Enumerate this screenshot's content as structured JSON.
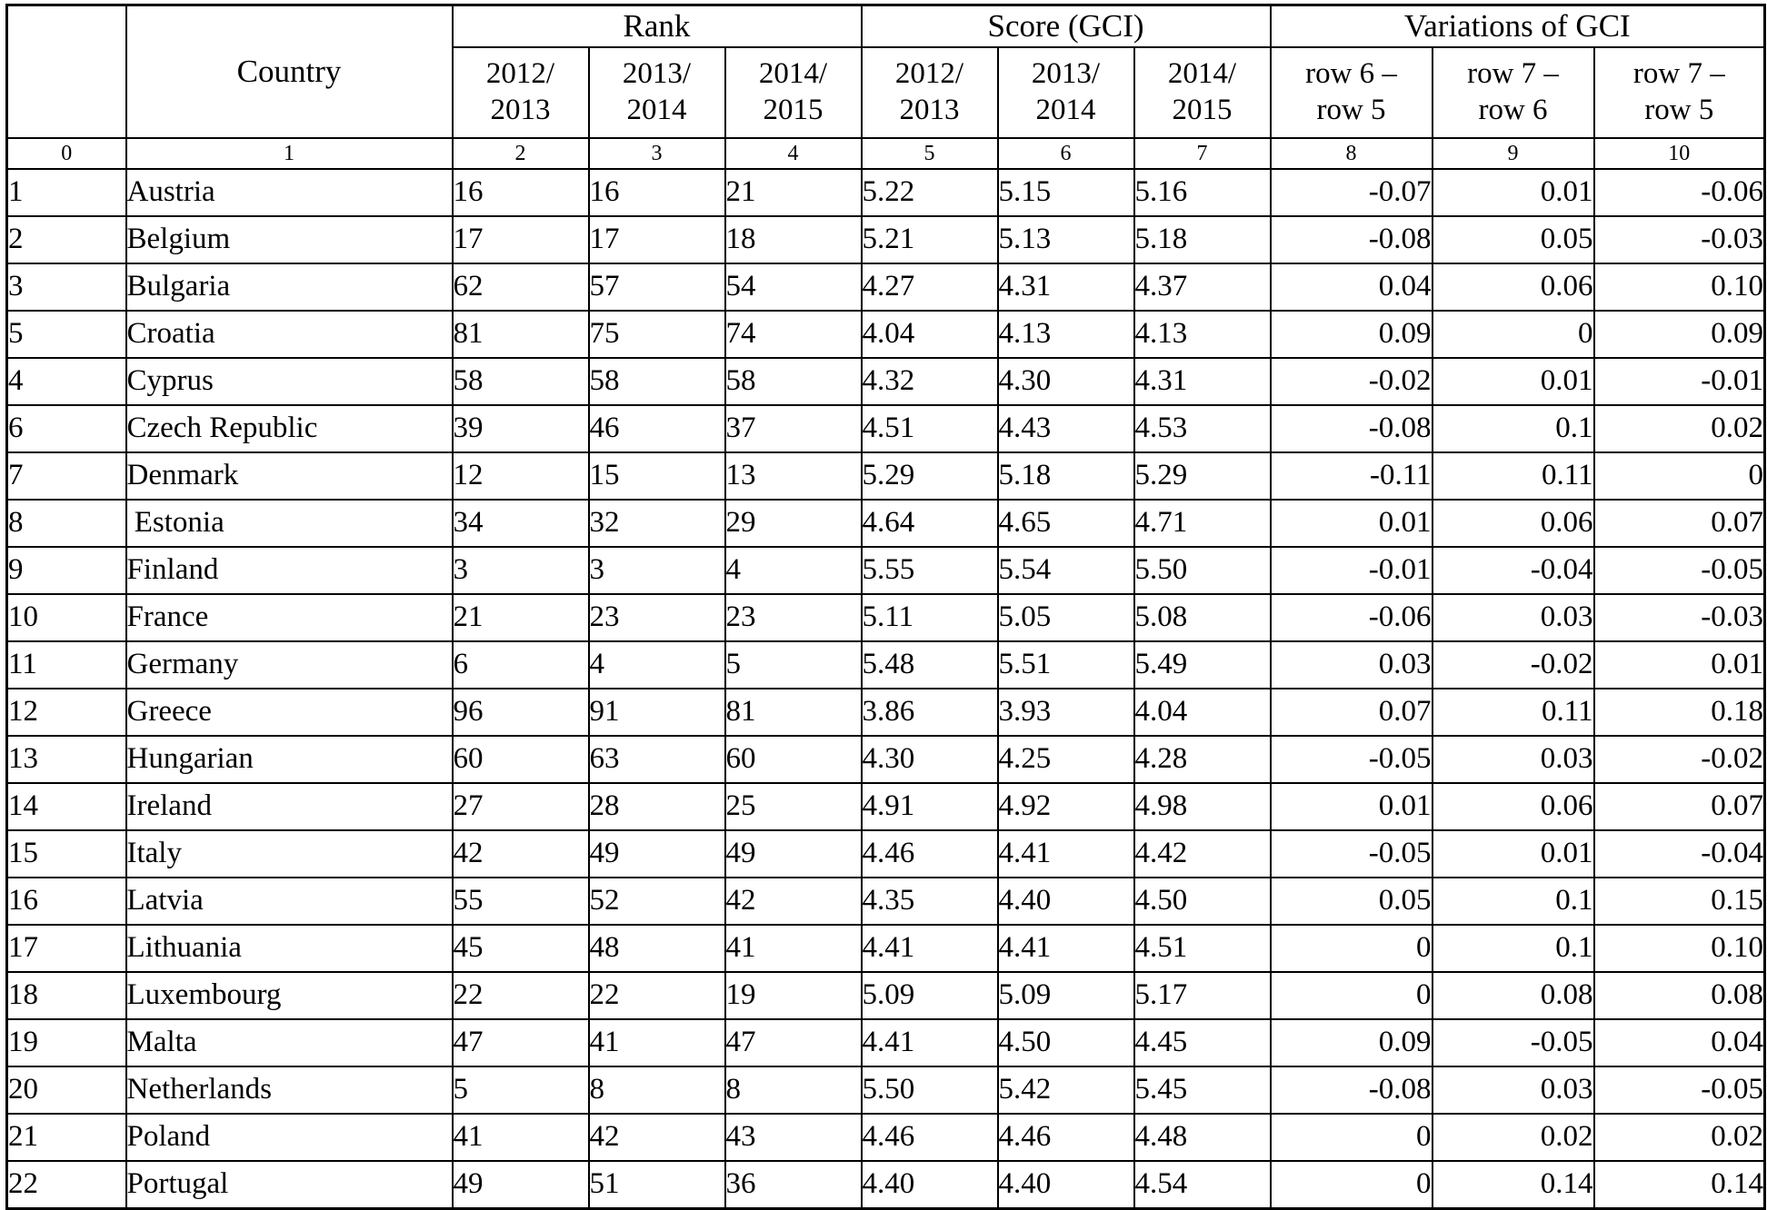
{
  "table": {
    "country_header": "Country",
    "group_headers": [
      "Rank",
      "Score (GCI)",
      "Variations of  GCI"
    ],
    "sub_headers": [
      "2012/\n2013",
      "2013/\n2014",
      "2014/\n2015",
      "2012/\n2013",
      "2013/\n2014",
      "2014/\n2015",
      "row 6 –\nrow 5",
      "row 7 –\nrow 6",
      "row 7 –\nrow 5"
    ],
    "col_indices": [
      "0",
      "1",
      "2",
      "3",
      "4",
      "5",
      "6",
      "7",
      "8",
      "9",
      "10"
    ],
    "rows": [
      [
        "1",
        "Austria",
        "16",
        "16",
        "21",
        "5.22",
        "5.15",
        "5.16",
        "-0.07",
        "0.01",
        "-0.06"
      ],
      [
        "2",
        "Belgium",
        "17",
        "17",
        "18",
        "5.21",
        "5.13",
        "5.18",
        "-0.08",
        "0.05",
        "-0.03"
      ],
      [
        "3",
        "Bulgaria",
        "62",
        "57",
        "54",
        "4.27",
        "4.31",
        "4.37",
        "0.04",
        "0.06",
        "0.10"
      ],
      [
        "5",
        "Croatia",
        "81",
        "75",
        "74",
        "4.04",
        "4.13",
        "4.13",
        "0.09",
        "0",
        "0.09"
      ],
      [
        "4",
        "Cyprus",
        "58",
        "58",
        "58",
        "4.32",
        "4.30",
        "4.31",
        "-0.02",
        "0.01",
        "-0.01"
      ],
      [
        "6",
        "Czech Republic",
        "39",
        "46",
        "37",
        "4.51",
        "4.43",
        "4.53",
        "-0.08",
        "0.1",
        "0.02"
      ],
      [
        "7",
        "Denmark",
        "12",
        "15",
        "13",
        "5.29",
        "5.18",
        "5.29",
        "-0.11",
        "0.11",
        "0"
      ],
      [
        "8",
        " Estonia",
        "34",
        "32",
        "29",
        "4.64",
        "4.65",
        "4.71",
        "0.01",
        "0.06",
        "0.07"
      ],
      [
        "9",
        "Finland",
        "3",
        "3",
        "4",
        "5.55",
        "5.54",
        "5.50",
        "-0.01",
        "-0.04",
        "-0.05"
      ],
      [
        "10",
        "France",
        "21",
        "23",
        "23",
        "5.11",
        "5.05",
        "5.08",
        "-0.06",
        "0.03",
        "-0.03"
      ],
      [
        "11",
        "Germany",
        "6",
        "4",
        "5",
        "5.48",
        "5.51",
        "5.49",
        "0.03",
        "-0.02",
        "0.01"
      ],
      [
        "12",
        "Greece",
        "96",
        "91",
        "81",
        "3.86",
        "3.93",
        "4.04",
        "0.07",
        "0.11",
        "0.18"
      ],
      [
        "13",
        "Hungarian",
        "60",
        "63",
        "60",
        "4.30",
        "4.25",
        "4.28",
        "-0.05",
        "0.03",
        "-0.02"
      ],
      [
        "14",
        "Ireland",
        "27",
        "28",
        "25",
        "4.91",
        "4.92",
        "4.98",
        "0.01",
        "0.06",
        "0.07"
      ],
      [
        "15",
        "Italy",
        "42",
        "49",
        "49",
        "4.46",
        "4.41",
        "4.42",
        "-0.05",
        "0.01",
        "-0.04"
      ],
      [
        "16",
        "Latvia",
        "55",
        "52",
        "42",
        "4.35",
        "4.40",
        "4.50",
        "0.05",
        "0.1",
        "0.15"
      ],
      [
        "17",
        "Lithuania",
        "45",
        "48",
        "41",
        "4.41",
        "4.41",
        "4.51",
        "0",
        "0.1",
        "0.10"
      ],
      [
        "18",
        "Luxembourg",
        "22",
        "22",
        "19",
        "5.09",
        "5.09",
        "5.17",
        "0",
        "0.08",
        "0.08"
      ],
      [
        "19",
        "Malta",
        "47",
        "41",
        "47",
        "4.41",
        "4.50",
        "4.45",
        "0.09",
        "-0.05",
        "0.04"
      ],
      [
        "20",
        "Netherlands",
        "5",
        "8",
        "8",
        "5.50",
        "5.42",
        "5.45",
        "-0.08",
        "0.03",
        "-0.05"
      ],
      [
        "21",
        "Poland",
        "41",
        "42",
        "43",
        "4.46",
        "4.46",
        "4.48",
        "0",
        "0.02",
        "0.02"
      ],
      [
        "22",
        "Portugal",
        "49",
        "51",
        "36",
        "4.40",
        "4.40",
        "4.54",
        "0",
        "0.14",
        "0.14"
      ]
    ]
  }
}
